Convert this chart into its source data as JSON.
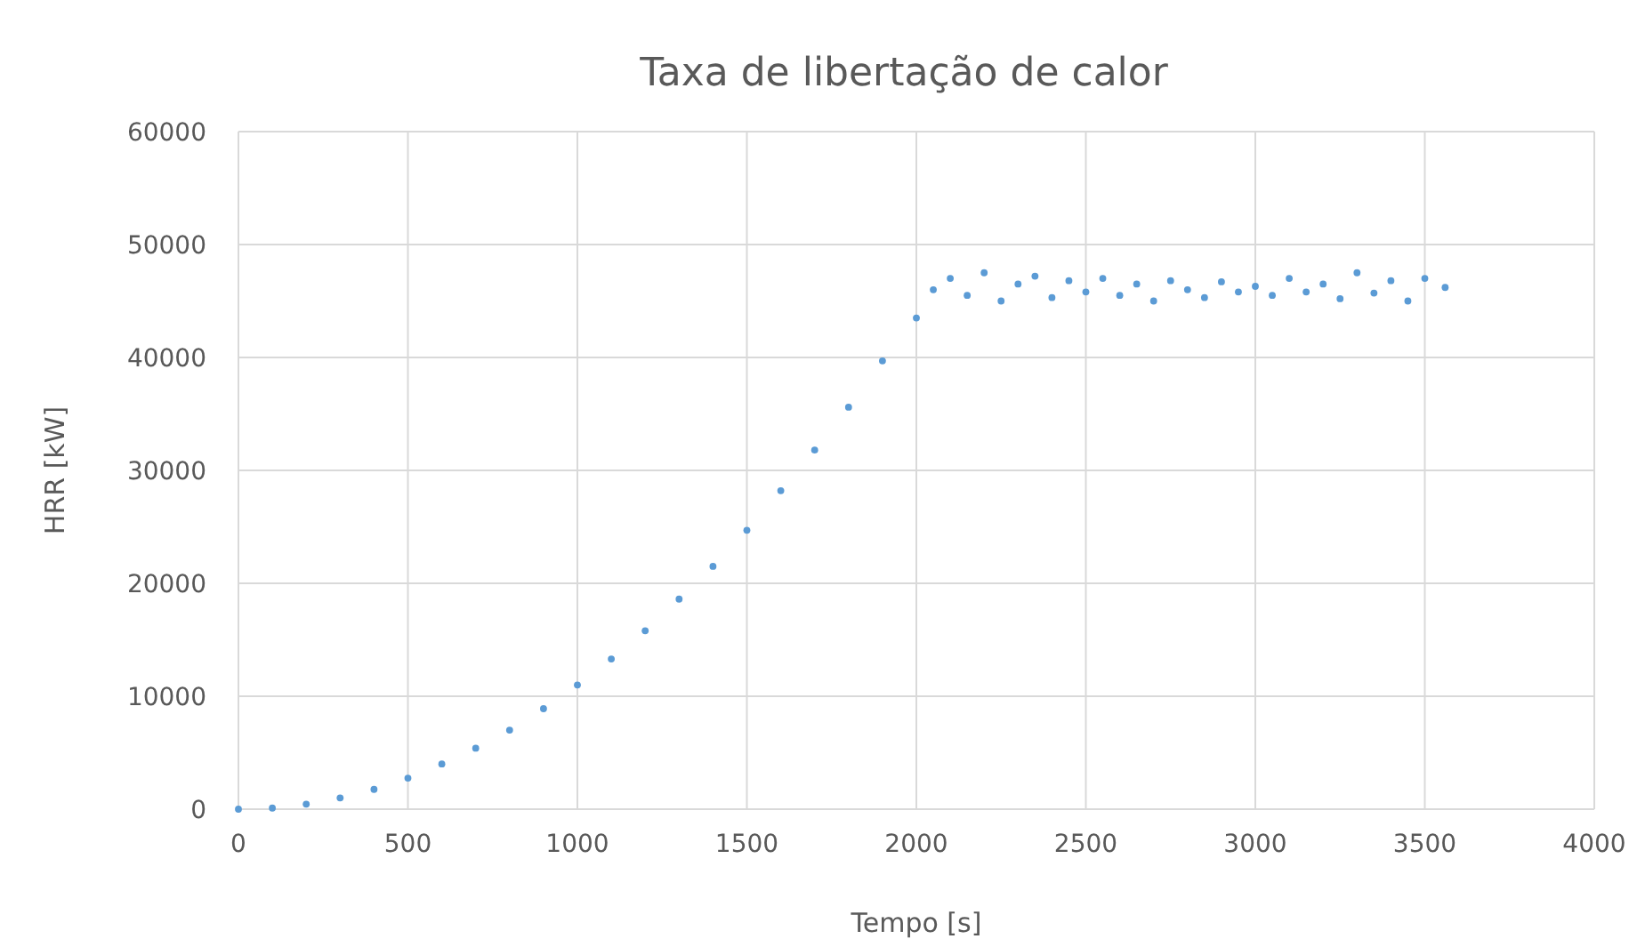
{
  "chart_data": {
    "type": "scatter",
    "title": "Taxa de libertação de calor",
    "xlabel": "Tempo  [s]",
    "ylabel": "HRR [kW]",
    "xlim": [
      0,
      4000
    ],
    "xticks": [
      0,
      500,
      1000,
      1500,
      2000,
      2500,
      3000,
      3500,
      4000
    ],
    "ylim": [
      0,
      60000
    ],
    "yticks": [
      0,
      10000,
      20000,
      30000,
      40000,
      50000,
      60000
    ],
    "grid": true,
    "marker": "circle",
    "series": [
      {
        "color": "#5b9bd5",
        "x": [
          0,
          100,
          200,
          300,
          400,
          500,
          600,
          700,
          800,
          900,
          1000,
          1100,
          1200,
          1300,
          1400,
          1500,
          1600,
          1700,
          1800,
          1900,
          2000,
          2050,
          2100,
          2150,
          2200,
          2250,
          2300,
          2350,
          2400,
          2450,
          2500,
          2550,
          2600,
          2650,
          2700,
          2750,
          2800,
          2850,
          2900,
          2950,
          3000,
          3050,
          3100,
          3150,
          3200,
          3250,
          3300,
          3350,
          3400,
          3450,
          3500,
          3560
        ],
        "values": [
          0,
          100,
          450,
          1000,
          1750,
          2750,
          4000,
          5400,
          7000,
          8900,
          11000,
          13300,
          15800,
          18600,
          21500,
          24700,
          28200,
          31800,
          35600,
          39700,
          43500,
          46000,
          47000,
          45500,
          47500,
          45000,
          46500,
          47200,
          45300,
          46800,
          45800,
          47000,
          45500,
          46500,
          45000,
          46800,
          46000,
          45300,
          46700,
          45800,
          46300,
          45500,
          47000,
          45800,
          46500,
          45200,
          47500,
          45700,
          46800,
          45000,
          47000,
          46200
        ]
      }
    ]
  }
}
